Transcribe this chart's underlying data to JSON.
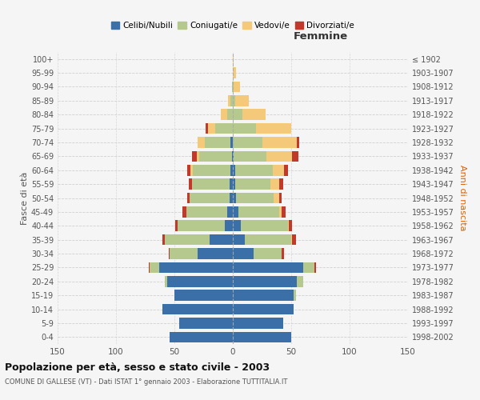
{
  "age_groups": [
    "0-4",
    "5-9",
    "10-14",
    "15-19",
    "20-24",
    "25-29",
    "30-34",
    "35-39",
    "40-44",
    "45-49",
    "50-54",
    "55-59",
    "60-64",
    "65-69",
    "70-74",
    "75-79",
    "80-84",
    "85-89",
    "90-94",
    "95-99",
    "100+"
  ],
  "birth_years": [
    "1998-2002",
    "1993-1997",
    "1988-1992",
    "1983-1987",
    "1978-1982",
    "1973-1977",
    "1968-1972",
    "1963-1967",
    "1958-1962",
    "1953-1957",
    "1948-1952",
    "1943-1947",
    "1938-1942",
    "1933-1937",
    "1928-1932",
    "1923-1927",
    "1918-1922",
    "1913-1917",
    "1908-1912",
    "1903-1907",
    "≤ 1902"
  ],
  "male": {
    "celibi": [
      54,
      46,
      60,
      50,
      56,
      63,
      30,
      20,
      7,
      5,
      3,
      3,
      2,
      1,
      2,
      0,
      0,
      0,
      0,
      0,
      0
    ],
    "coniugati": [
      0,
      0,
      0,
      0,
      2,
      8,
      24,
      38,
      40,
      35,
      34,
      32,
      32,
      28,
      22,
      15,
      5,
      2,
      1,
      0,
      0
    ],
    "vedovi": [
      0,
      0,
      0,
      0,
      0,
      0,
      0,
      0,
      0,
      0,
      0,
      0,
      2,
      2,
      6,
      6,
      5,
      2,
      0,
      0,
      0
    ],
    "divorziati": [
      0,
      0,
      0,
      0,
      0,
      1,
      1,
      2,
      2,
      3,
      2,
      3,
      3,
      4,
      0,
      2,
      0,
      0,
      0,
      0,
      0
    ]
  },
  "female": {
    "nubili": [
      50,
      43,
      52,
      52,
      55,
      60,
      18,
      10,
      7,
      5,
      3,
      2,
      2,
      1,
      0,
      0,
      0,
      0,
      0,
      0,
      0
    ],
    "coniugate": [
      0,
      0,
      0,
      2,
      5,
      10,
      24,
      40,
      40,
      35,
      32,
      30,
      32,
      28,
      25,
      20,
      8,
      2,
      1,
      0,
      0
    ],
    "vedove": [
      0,
      0,
      0,
      0,
      0,
      0,
      0,
      1,
      1,
      2,
      5,
      8,
      10,
      22,
      30,
      30,
      20,
      12,
      5,
      3,
      1
    ],
    "divorziate": [
      0,
      0,
      0,
      0,
      0,
      1,
      2,
      3,
      3,
      3,
      2,
      3,
      3,
      5,
      2,
      0,
      0,
      0,
      0,
      0,
      0
    ]
  },
  "colors": {
    "celibi": "#3a6fa8",
    "coniugati": "#b5c98e",
    "vedovi": "#f5c97a",
    "divorziati": "#c0392b"
  },
  "xlim": 150,
  "title": "Popolazione per età, sesso e stato civile - 2003",
  "subtitle": "COMUNE DI GALLESE (VT) - Dati ISTAT 1° gennaio 2003 - Elaborazione TUTTITALIA.IT",
  "xlabel_right": "Femmine",
  "ylabel_left": "Fasce di età",
  "ylabel_right": "Anni di nascita",
  "bg_color": "#f5f5f5",
  "grid_color": "#cccccc"
}
